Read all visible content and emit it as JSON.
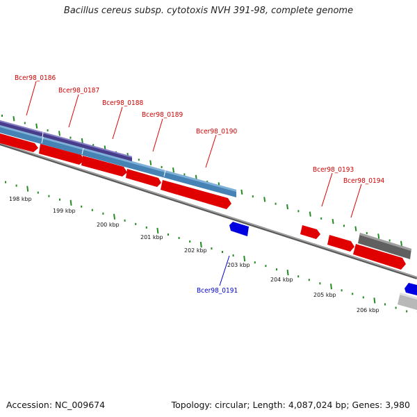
{
  "title": "Bacillus cereus subsp. cytotoxis NVH 391-98, complete genome",
  "accession": "Accession: NC_009674",
  "summary": "Topology: circular; Length: 4,087,024 bp; Genes: 3,980",
  "colors": {
    "forward_gene": "#ff0000",
    "reverse_gene": "#0000ff",
    "cds_blue": "#4682b4",
    "cds_dark": "#483d8b",
    "ruler_tick": "#228b22",
    "backbone": "#808080",
    "other_gene": "#696969"
  },
  "kbp_labels": [
    "198 kbp",
    "199 kbp",
    "200 kbp",
    "201 kbp",
    "202 kbp",
    "203 kbp",
    "204 kbp",
    "205 kbp",
    "206 kbp"
  ],
  "gene_labels": [
    {
      "text": "Bcer98_0186",
      "strand": "forward"
    },
    {
      "text": "Bcer98_0187",
      "strand": "forward"
    },
    {
      "text": "Bcer98_0188",
      "strand": "forward"
    },
    {
      "text": "Bcer98_0189",
      "strand": "forward"
    },
    {
      "text": "Bcer98_0190",
      "strand": "forward"
    },
    {
      "text": "Bcer98_0191",
      "strand": "reverse"
    },
    {
      "text": "Bcer98_0193",
      "strand": "forward"
    },
    {
      "text": "Bcer98_0194",
      "strand": "forward"
    }
  ]
}
